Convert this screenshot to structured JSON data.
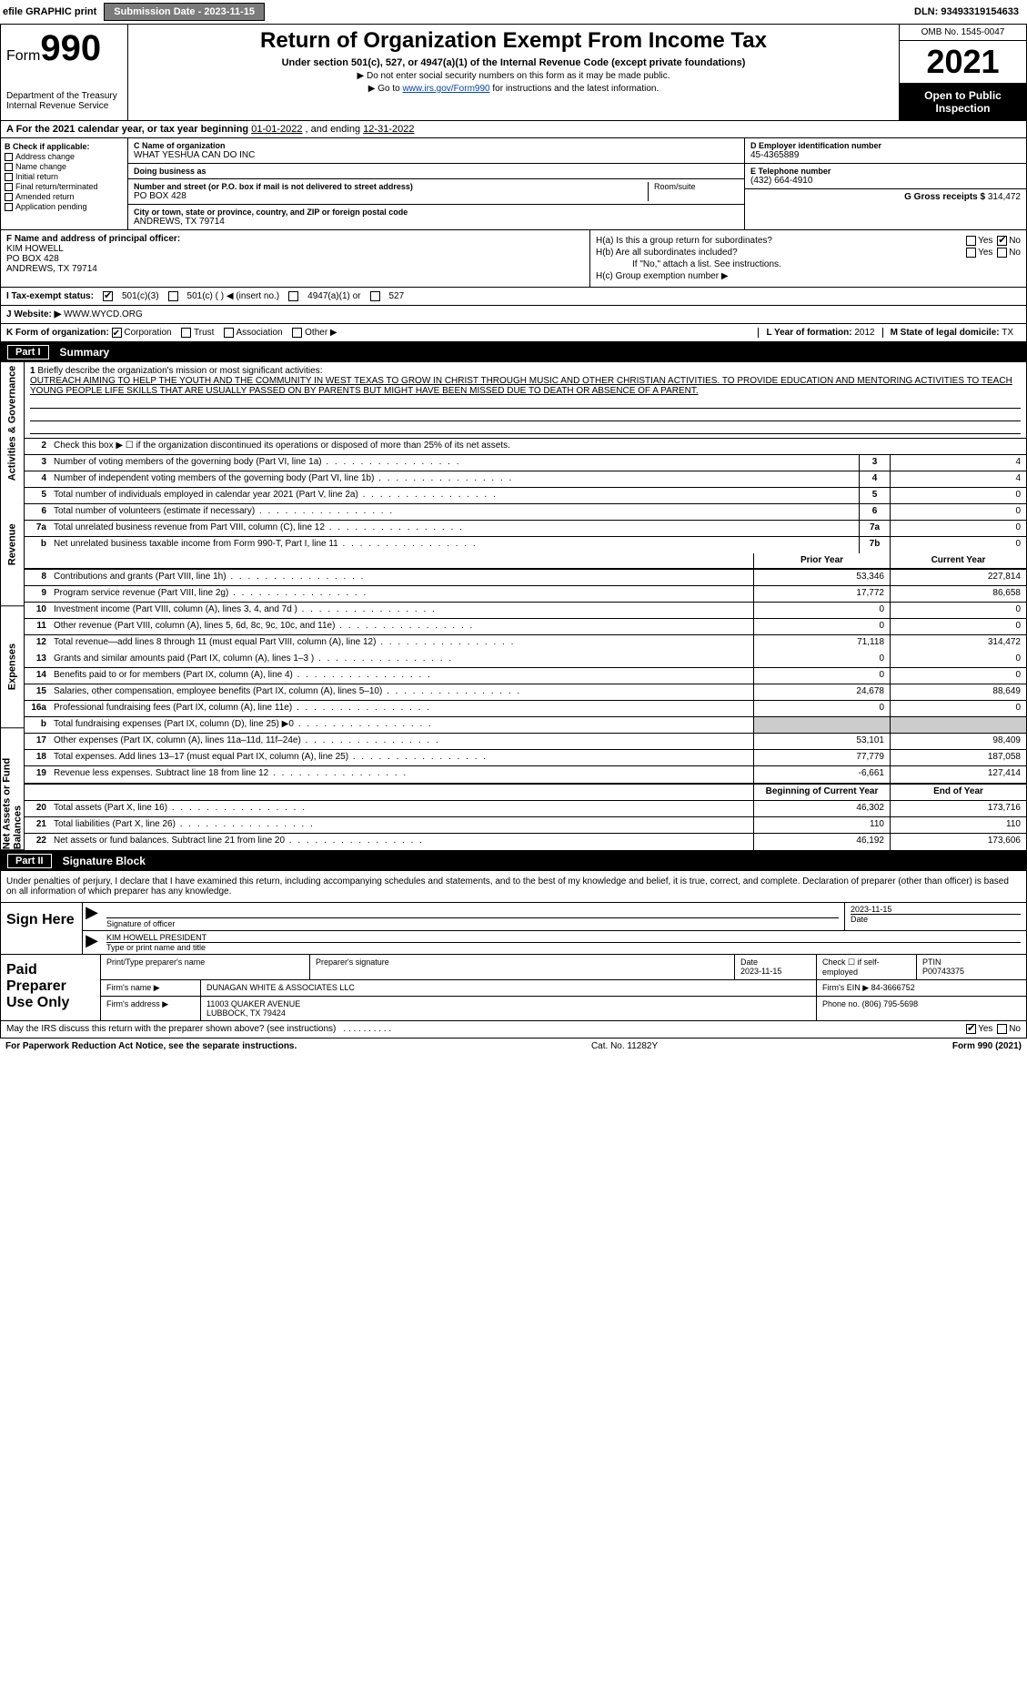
{
  "topbar": {
    "efile_label": "efile GRAPHIC print",
    "submission_label": "Submission Date - 2023-11-15",
    "dln": "DLN: 93493319154633"
  },
  "header": {
    "form_prefix": "Form",
    "form_number": "990",
    "title": "Return of Organization Exempt From Income Tax",
    "subtitle": "Under section 501(c), 527, or 4947(a)(1) of the Internal Revenue Code (except private foundations)",
    "note1": "▶ Do not enter social security numbers on this form as it may be made public.",
    "note2_pre": "▶ Go to ",
    "note2_link": "www.irs.gov/Form990",
    "note2_post": " for instructions and the latest information.",
    "dept": "Department of the Treasury\nInternal Revenue Service",
    "omb": "OMB No. 1545-0047",
    "year": "2021",
    "open": "Open to Public Inspection"
  },
  "row_a": {
    "text_pre": "A For the 2021 calendar year, or tax year beginning ",
    "begin": "01-01-2022",
    "mid": "    , and ending ",
    "end": "12-31-2022"
  },
  "col_b": {
    "label": "B Check if applicable:",
    "items": [
      "Address change",
      "Name change",
      "Initial return",
      "Final return/terminated",
      "Amended return",
      "Application pending"
    ]
  },
  "col_c": {
    "name_label": "C Name of organization",
    "name": "WHAT YESHUA CAN DO INC",
    "dba_label": "Doing business as",
    "dba": "",
    "addr_label": "Number and street (or P.O. box if mail is not delivered to street address)",
    "room_label": "Room/suite",
    "addr": "PO BOX 428",
    "city_label": "City or town, state or province, country, and ZIP or foreign postal code",
    "city": "ANDREWS, TX  79714"
  },
  "col_d": {
    "label": "D Employer identification number",
    "ein": "45-4365889",
    "tel_label": "E Telephone number",
    "tel": "(432) 664-4910",
    "gross_label": "G Gross receipts $",
    "gross": "314,472"
  },
  "col_f": {
    "label": "F Name and address of principal officer:",
    "name": "KIM HOWELL",
    "addr1": "PO BOX 428",
    "addr2": "ANDREWS, TX  79714"
  },
  "col_h": {
    "ha": "H(a)  Is this a group return for subordinates?",
    "hb": "H(b)  Are all subordinates included?",
    "hb_note": "If \"No,\" attach a list. See instructions.",
    "hc": "H(c)  Group exemption number ▶",
    "yes": "Yes",
    "no": "No"
  },
  "row_tax": {
    "label": "I  Tax-exempt status:",
    "opt1": "501(c)(3)",
    "opt2": "501(c) (    ) ◀ (insert no.)",
    "opt3": "4947(a)(1) or",
    "opt4": "527"
  },
  "row_j": {
    "label": "J  Website: ▶",
    "value": "WWW.WYCD.ORG"
  },
  "row_k": {
    "label": "K Form of organization:",
    "opts": [
      "Corporation",
      "Trust",
      "Association",
      "Other ▶"
    ],
    "l_label": "L Year of formation:",
    "l_val": "2012",
    "m_label": "M State of legal domicile:",
    "m_val": "TX"
  },
  "part1": {
    "num": "Part I",
    "title": "Summary"
  },
  "mission": {
    "num": "1",
    "label": "Briefly describe the organization's mission or most significant activities:",
    "text": "OUTREACH AIMING TO HELP THE YOUTH AND THE COMMUNITY IN WEST TEXAS TO GROW IN CHRIST THROUGH MUSIC AND OTHER CHRISTIAN ACTIVITIES. TO PROVIDE EDUCATION AND MENTORING ACTIVITIES TO TEACH YOUNG PEOPLE LIFE SKILLS THAT ARE USUALLY PASSED ON BY PARENTS BUT MIGHT HAVE BEEN MISSED DUE TO DEATH OR ABSENCE OF A PARENT."
  },
  "line2": {
    "num": "2",
    "text": "Check this box ▶ ☐  if the organization discontinued its operations or disposed of more than 25% of its net assets."
  },
  "gov_lines": [
    {
      "n": "3",
      "desc": "Number of voting members of the governing body (Part VI, line 1a)",
      "cell": "3",
      "val": "4"
    },
    {
      "n": "4",
      "desc": "Number of independent voting members of the governing body (Part VI, line 1b)",
      "cell": "4",
      "val": "4"
    },
    {
      "n": "5",
      "desc": "Total number of individuals employed in calendar year 2021 (Part V, line 2a)",
      "cell": "5",
      "val": "0"
    },
    {
      "n": "6",
      "desc": "Total number of volunteers (estimate if necessary)",
      "cell": "6",
      "val": "0"
    },
    {
      "n": "7a",
      "desc": "Total unrelated business revenue from Part VIII, column (C), line 12",
      "cell": "7a",
      "val": "0"
    },
    {
      "n": "b",
      "desc": "Net unrelated business taxable income from Form 990-T, Part I, line 11",
      "cell": "7b",
      "val": "0"
    }
  ],
  "col_headers": {
    "prior": "Prior Year",
    "current": "Current Year"
  },
  "rev_lines": [
    {
      "n": "8",
      "desc": "Contributions and grants (Part VIII, line 1h)",
      "p": "53,346",
      "c": "227,814"
    },
    {
      "n": "9",
      "desc": "Program service revenue (Part VIII, line 2g)",
      "p": "17,772",
      "c": "86,658"
    },
    {
      "n": "10",
      "desc": "Investment income (Part VIII, column (A), lines 3, 4, and 7d )",
      "p": "0",
      "c": "0"
    },
    {
      "n": "11",
      "desc": "Other revenue (Part VIII, column (A), lines 5, 6d, 8c, 9c, 10c, and 11e)",
      "p": "0",
      "c": "0"
    },
    {
      "n": "12",
      "desc": "Total revenue—add lines 8 through 11 (must equal Part VIII, column (A), line 12)",
      "p": "71,118",
      "c": "314,472"
    }
  ],
  "exp_lines": [
    {
      "n": "13",
      "desc": "Grants and similar amounts paid (Part IX, column (A), lines 1–3 )",
      "p": "0",
      "c": "0"
    },
    {
      "n": "14",
      "desc": "Benefits paid to or for members (Part IX, column (A), line 4)",
      "p": "0",
      "c": "0"
    },
    {
      "n": "15",
      "desc": "Salaries, other compensation, employee benefits (Part IX, column (A), lines 5–10)",
      "p": "24,678",
      "c": "88,649"
    },
    {
      "n": "16a",
      "desc": "Professional fundraising fees (Part IX, column (A), line 11e)",
      "p": "0",
      "c": "0"
    },
    {
      "n": "b",
      "desc": "Total fundraising expenses (Part IX, column (D), line 25) ▶0",
      "p": "",
      "c": "",
      "shade": true
    },
    {
      "n": "17",
      "desc": "Other expenses (Part IX, column (A), lines 11a–11d, 11f–24e)",
      "p": "53,101",
      "c": "98,409"
    },
    {
      "n": "18",
      "desc": "Total expenses. Add lines 13–17 (must equal Part IX, column (A), line 25)",
      "p": "77,779",
      "c": "187,058"
    },
    {
      "n": "19",
      "desc": "Revenue less expenses. Subtract line 18 from line 12",
      "p": "-6,661",
      "c": "127,414"
    }
  ],
  "na_headers": {
    "begin": "Beginning of Current Year",
    "end": "End of Year"
  },
  "na_lines": [
    {
      "n": "20",
      "desc": "Total assets (Part X, line 16)",
      "p": "46,302",
      "c": "173,716"
    },
    {
      "n": "21",
      "desc": "Total liabilities (Part X, line 26)",
      "p": "110",
      "c": "110"
    },
    {
      "n": "22",
      "desc": "Net assets or fund balances. Subtract line 21 from line 20",
      "p": "46,192",
      "c": "173,606"
    }
  ],
  "side_tabs": [
    "Activities & Governance",
    "Revenue",
    "Expenses",
    "Net Assets or Fund Balances"
  ],
  "part2": {
    "num": "Part II",
    "title": "Signature Block"
  },
  "sig": {
    "penalty": "Under penalties of perjury, I declare that I have examined this return, including accompanying schedules and statements, and to the best of my knowledge and belief, it is true, correct, and complete. Declaration of preparer (other than officer) is based on all information of which preparer has any knowledge.",
    "sign_here": "Sign Here",
    "sig_label": "Signature of officer",
    "date_label": "Date",
    "date": "2023-11-15",
    "name": "KIM HOWELL  PRESIDENT",
    "name_label": "Type or print name and title"
  },
  "prep": {
    "label": "Paid Preparer Use Only",
    "h1": "Print/Type preparer's name",
    "h2": "Preparer's signature",
    "h3": "Date",
    "h3v": "2023-11-15",
    "h4": "Check ☐ if self-employed",
    "h5": "PTIN",
    "h5v": "P00743375",
    "firm_label": "Firm's name    ▶",
    "firm": "DUNAGAN WHITE & ASSOCIATES LLC",
    "ein_label": "Firm's EIN ▶",
    "ein": "84-3666752",
    "addr_label": "Firm's address ▶",
    "addr1": "11003 QUAKER AVENUE",
    "addr2": "LUBBOCK, TX  79424",
    "phone_label": "Phone no.",
    "phone": "(806) 795-5698"
  },
  "bottom": {
    "q": "May the IRS discuss this return with the preparer shown above? (see instructions)",
    "yes": "Yes",
    "no": "No"
  },
  "footer": {
    "left": "For Paperwork Reduction Act Notice, see the separate instructions.",
    "cat": "Cat. No. 11282Y",
    "right": "Form 990 (2021)"
  }
}
